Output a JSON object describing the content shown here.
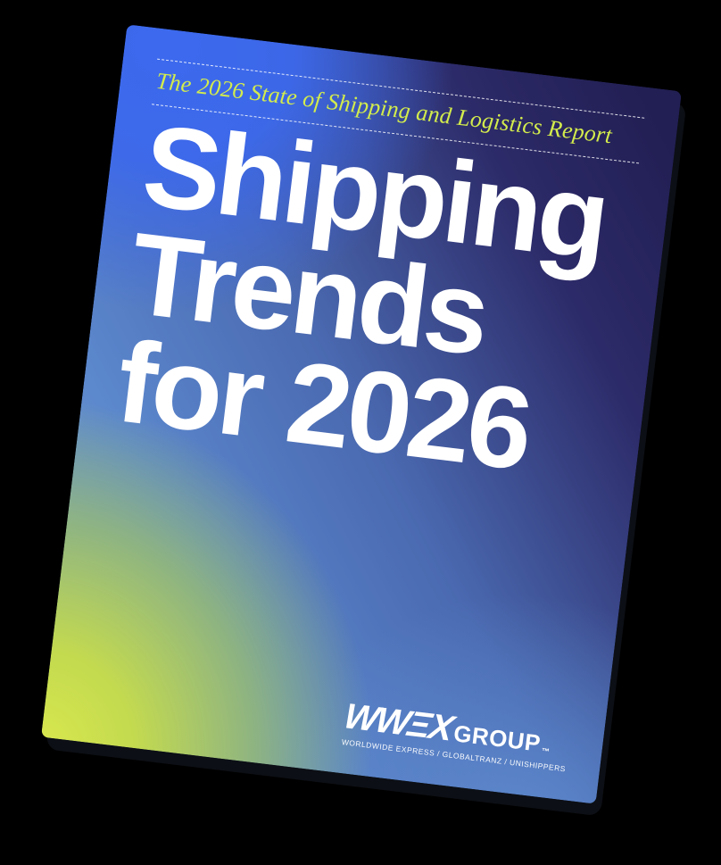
{
  "cover": {
    "eyebrow": "The 2026 State of Shipping and Logistics Report",
    "title_lines": [
      "Shipping",
      "Trends",
      "for 2026"
    ],
    "logo": {
      "wordmark": "WWΞX",
      "suffix": "GROUP",
      "trademark": "™",
      "tagline": "WORLDWIDE EXPRESS / GLOBALTRANZ / UNISHIPPERS"
    },
    "colors": {
      "eyebrow_text": "#d3ec4c",
      "title_text": "#ffffff",
      "gradient_royal_blue": "#3c69ee",
      "gradient_navy": "#221f54",
      "gradient_green": "#d9e84e",
      "gradient_cornflower": "#5e8ace"
    }
  }
}
